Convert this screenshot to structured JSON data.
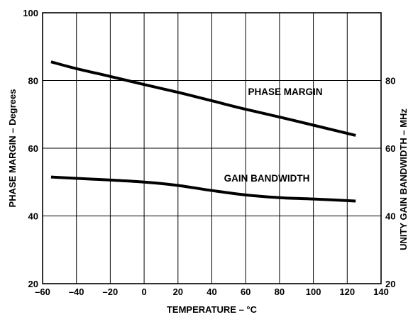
{
  "chart_data": {
    "type": "line",
    "xlabel": "TEMPERATURE – °C",
    "ylabel_left": "PHASE MARGIN – Degrees",
    "ylabel_right": "UNITY GAIN BANDWIDTH – MHz",
    "xlim": [
      -60,
      140
    ],
    "ylim_left": [
      20,
      100
    ],
    "ylim_right": [
      20,
      100
    ],
    "x_ticks": [
      "–60",
      "–40",
      "–20",
      "0",
      "20",
      "40",
      "60",
      "80",
      "100",
      "120",
      "140"
    ],
    "y_ticks_left": [
      "20",
      "40",
      "60",
      "80",
      "100"
    ],
    "y_ticks_right": [
      "20",
      "40",
      "60",
      "80"
    ],
    "grid": true,
    "series": [
      {
        "name": "PHASE MARGIN",
        "axis": "left",
        "x": [
          -55,
          -40,
          -20,
          0,
          20,
          40,
          60,
          80,
          100,
          125
        ],
        "y": [
          85.5,
          83.5,
          81.2,
          78.8,
          76.5,
          74,
          71.5,
          69.2,
          66.8,
          63.8
        ]
      },
      {
        "name": "GAIN BANDWIDTH",
        "axis": "right",
        "x": [
          -55,
          -40,
          -20,
          0,
          20,
          40,
          60,
          80,
          100,
          125
        ],
        "y": [
          51.5,
          51.1,
          50.6,
          50,
          49,
          47.5,
          46.2,
          45.4,
          45,
          44.4
        ]
      }
    ],
    "color": "#000000"
  }
}
